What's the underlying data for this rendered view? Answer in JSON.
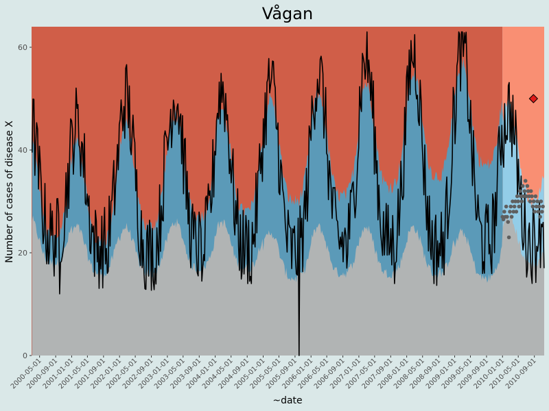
{
  "chart_data": {
    "type": "area",
    "title": "Vågan",
    "xlabel": "~date",
    "ylabel": "Number of cases of disease X",
    "ylim": [
      0,
      64
    ],
    "yticks": [
      0,
      20,
      40,
      60
    ],
    "xlim": [
      "2000-03-01",
      "2010-11-15"
    ],
    "xticks": [
      "2000-05-01",
      "2000-09-01",
      "2001-01-01",
      "2001-05-01",
      "2001-09-01",
      "2002-01-01",
      "2002-05-01",
      "2002-09-01",
      "2003-01-01",
      "2003-05-01",
      "2003-09-01",
      "2004-01-01",
      "2004-05-01",
      "2004-09-01",
      "2005-01-01",
      "2005-05-01",
      "2005-09-01",
      "2006-01-01",
      "2006-05-01",
      "2006-09-01",
      "2007-01-01",
      "2007-05-01",
      "2007-09-01",
      "2008-01-01",
      "2008-05-01",
      "2008-09-01",
      "2009-01-01",
      "2009-05-01",
      "2009-09-01",
      "2010-01-01",
      "2010-05-01",
      "2010-09-01"
    ],
    "grid": false,
    "legend": "none",
    "training_end": "2010-01-01",
    "colors": {
      "background": "#dae8e8",
      "panel_bg": "#d05e48",
      "panel_bg_highlight": "#f98f73",
      "lower_band": "#b1b4b4",
      "band": "#5b9ab8",
      "band_highlight": "#93cde8",
      "line": "#000000",
      "points": "#5f5f5f",
      "alert": "#e01a1a"
    },
    "series": [
      {
        "type": "line",
        "peak_month": [
          1.5,
          1.3,
          1.6,
          2.0,
          1.7,
          1.9,
          1.9,
          1.8,
          1.7,
          1.9,
          1.6
        ],
        "peak_height": [
          46,
          45,
          50,
          51,
          52,
          53,
          55,
          58,
          59,
          60,
          48
        ],
        "trough_height": [
          23,
          21,
          20,
          21,
          21,
          20,
          22,
          22,
          21,
          22,
          22
        ],
        "min_value": [
          12,
          16,
          17,
          17,
          14,
          0,
          17,
          14,
          17,
          18,
          22
        ],
        "end_value": 17
      },
      {
        "type": "band",
        "lower": [
          18,
          16,
          16,
          17,
          17,
          15,
          16,
          16,
          16,
          15,
          18
        ],
        "upper": [
          43,
          42,
          45,
          47,
          48,
          50,
          51,
          53,
          55,
          57,
          50
        ]
      },
      {
        "type": "scatter",
        "start": "2010-01-01",
        "y": [
          27,
          26.5,
          28,
          27,
          29,
          27,
          26,
          23,
          28,
          29,
          27,
          30,
          28,
          29,
          30,
          28,
          31,
          30,
          29,
          32,
          31,
          30,
          33,
          31,
          32,
          34,
          31,
          33,
          32,
          31,
          30,
          32,
          31,
          29,
          30,
          28,
          31,
          29,
          30,
          28,
          29,
          27,
          30,
          28,
          29
        ]
      }
    ],
    "annotations": [
      {
        "type": "alert",
        "x": "2010-08-25",
        "y": 50
      }
    ]
  }
}
